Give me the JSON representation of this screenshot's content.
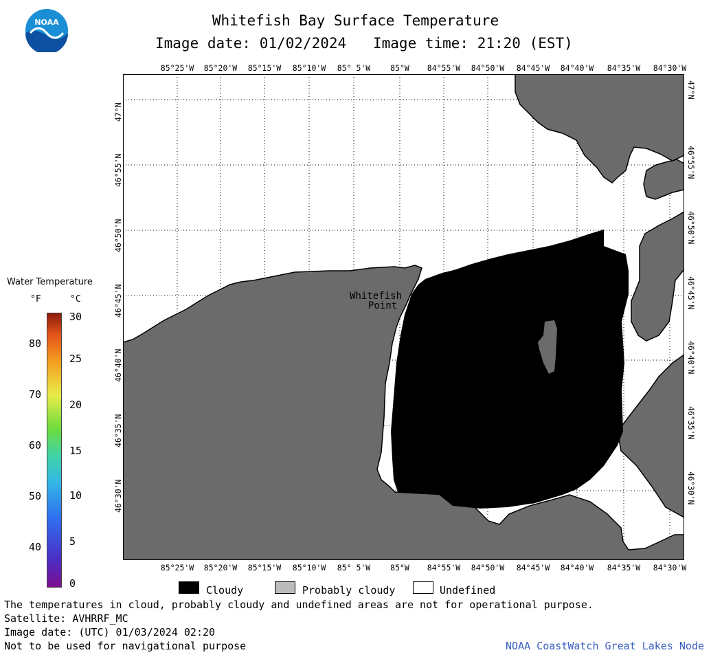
{
  "header": {
    "title": "Whitefish Bay Surface Temperature",
    "image_date": "Image date: 01/02/2024",
    "image_time": "Image time: 21:20 (EST)"
  },
  "logo": {
    "text": "NOAA",
    "icon": "noaa-logo-icon"
  },
  "map": {
    "lon_labels": [
      "85°25'W",
      "85°20'W",
      "85°15'W",
      "85°10'W",
      "85° 5'W",
      "85°W",
      "84°55'W",
      "84°50'W",
      "84°45'W",
      "84°40'W",
      "84°35'W",
      "84°30'W"
    ],
    "lat_labels": [
      "47°N",
      "46°55'N",
      "46°50'N",
      "46°45'N",
      "46°40'N",
      "46°35'N",
      "46°30'N"
    ],
    "place_label_line1": "Whitefish",
    "place_label_line2": "Point",
    "colors": {
      "land": "#6b6b6b",
      "cloud": "#000000",
      "undefined": "#ffffff"
    }
  },
  "legend": {
    "title": "Water Temperature",
    "unit_f": "°F",
    "unit_c": "°C",
    "f_ticks": [
      "80",
      "70",
      "60",
      "50",
      "40"
    ],
    "c_ticks": [
      "30",
      "25",
      "20",
      "15",
      "10",
      "5",
      "0"
    ]
  },
  "key": {
    "cloudy": "Cloudy",
    "probably_cloudy": "Probably cloudy",
    "undefined": "Undefined"
  },
  "footer": {
    "line1": "The temperatures in cloud, probably cloudy and undefined areas are not for operational purpose.",
    "line2": "Satellite: AVHRRF_MC",
    "line3": "Image date: (UTC) 01/03/2024  02:20",
    "line4": "Not to be used for navigational purpose",
    "credit": "NOAA CoastWatch Great Lakes Node"
  }
}
